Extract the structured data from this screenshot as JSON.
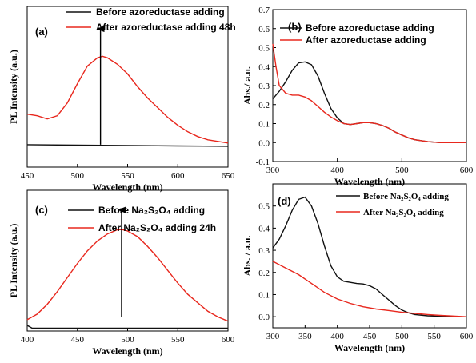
{
  "colors": {
    "black": "#111111",
    "red": "#e8281e"
  },
  "chart_data": [
    {
      "id": "a",
      "type": "line",
      "panel_label": "(a)",
      "xlabel": "Wavelength (nm)",
      "ylabel": "PL Intensity (a.u.)",
      "xlim": [
        450,
        650
      ],
      "ylim": [
        0,
        1
      ],
      "xticks": [
        "450",
        "500",
        "550",
        "600",
        "650"
      ],
      "yticks": [],
      "legend_position": "top-left",
      "arrow": {
        "x": 523,
        "y_from": 0.14,
        "y_to": 0.86
      },
      "series": [
        {
          "name": "Before azoreductase adding",
          "color": "black",
          "x": [
            450,
            500,
            550,
            600,
            650
          ],
          "y": [
            0.14,
            0.137,
            0.135,
            0.132,
            0.13
          ]
        },
        {
          "name": "After azoreductase adding 48h",
          "color": "red",
          "x": [
            450,
            460,
            470,
            480,
            490,
            500,
            510,
            520,
            525,
            530,
            540,
            550,
            560,
            570,
            580,
            590,
            600,
            610,
            620,
            630,
            640,
            650
          ],
          "y": [
            0.33,
            0.32,
            0.3,
            0.32,
            0.4,
            0.52,
            0.63,
            0.68,
            0.69,
            0.68,
            0.64,
            0.58,
            0.5,
            0.43,
            0.37,
            0.31,
            0.26,
            0.22,
            0.19,
            0.17,
            0.16,
            0.15
          ]
        }
      ]
    },
    {
      "id": "b",
      "type": "line",
      "panel_label": "(b)",
      "xlabel": "Wavelength (nm)",
      "ylabel": "Abs./ a.u.",
      "xlim": [
        300,
        600
      ],
      "ylim": [
        -0.1,
        0.7
      ],
      "xticks": [
        "300",
        "400",
        "500",
        "600"
      ],
      "yticks": [
        "-0.1",
        "0.0",
        "0.1",
        "0.2",
        "0.3",
        "0.4",
        "0.5",
        "0.6",
        "0.7"
      ],
      "legend_position": "top-right",
      "series": [
        {
          "name": "Before azoreductase adding",
          "color": "black",
          "x": [
            300,
            310,
            320,
            330,
            340,
            350,
            360,
            370,
            380,
            390,
            400,
            410,
            420,
            430,
            440,
            450,
            460,
            470,
            480,
            490,
            500,
            510,
            520,
            540,
            560,
            580,
            600
          ],
          "y": [
            0.23,
            0.27,
            0.32,
            0.38,
            0.42,
            0.425,
            0.41,
            0.35,
            0.26,
            0.18,
            0.13,
            0.1,
            0.095,
            0.1,
            0.105,
            0.105,
            0.1,
            0.09,
            0.075,
            0.055,
            0.04,
            0.025,
            0.015,
            0.005,
            0.0,
            0.0,
            0.0
          ]
        },
        {
          "name": "After azoreductase adding",
          "color": "red",
          "x": [
            300,
            305,
            310,
            320,
            330,
            340,
            350,
            360,
            370,
            380,
            390,
            400,
            410,
            420,
            430,
            440,
            450,
            460,
            470,
            480,
            490,
            500,
            510,
            520,
            540,
            560,
            580,
            600
          ],
          "y": [
            0.52,
            0.4,
            0.3,
            0.26,
            0.25,
            0.25,
            0.24,
            0.22,
            0.19,
            0.16,
            0.135,
            0.115,
            0.1,
            0.095,
            0.1,
            0.105,
            0.105,
            0.1,
            0.09,
            0.075,
            0.055,
            0.04,
            0.025,
            0.015,
            0.005,
            0.0,
            0.0,
            0.0
          ]
        }
      ]
    },
    {
      "id": "c",
      "type": "line",
      "panel_label": "(c)",
      "xlabel": "Wavelength (nm)",
      "ylabel": "PL Intensity (a.u.)",
      "xlim": [
        400,
        600
      ],
      "ylim": [
        0,
        1
      ],
      "xticks": [
        "400",
        "450",
        "500",
        "550",
        "600"
      ],
      "yticks": [],
      "legend_position": "top-right",
      "arrow": {
        "x": 494,
        "y_from": 0.1,
        "y_to": 0.86
      },
      "series": [
        {
          "name": "Before Na₂S₂O₄ adding",
          "color": "black",
          "x": [
            400,
            405,
            450,
            500,
            550,
            600
          ],
          "y": [
            0.04,
            0.02,
            0.02,
            0.02,
            0.02,
            0.02
          ]
        },
        {
          "name": "After Na₂S₂O₄ adding 24h",
          "color": "red",
          "x": [
            400,
            410,
            420,
            430,
            440,
            450,
            460,
            470,
            480,
            490,
            495,
            500,
            510,
            520,
            530,
            540,
            550,
            560,
            570,
            580,
            590,
            600
          ],
          "y": [
            0.08,
            0.12,
            0.19,
            0.28,
            0.38,
            0.48,
            0.57,
            0.64,
            0.69,
            0.72,
            0.72,
            0.71,
            0.67,
            0.6,
            0.52,
            0.43,
            0.34,
            0.26,
            0.2,
            0.14,
            0.1,
            0.07
          ]
        }
      ]
    },
    {
      "id": "d",
      "type": "line",
      "panel_label": "(d)",
      "xlabel": "Wavelength (nm)",
      "ylabel": "Abs. / a.u.",
      "xlim": [
        300,
        600
      ],
      "ylim": [
        -0.05,
        0.6
      ],
      "xticks": [
        "300",
        "350",
        "400",
        "450",
        "500",
        "550",
        "600"
      ],
      "yticks": [
        "0.0",
        "0.1",
        "0.2",
        "0.3",
        "0.4",
        "0.5"
      ],
      "legend_position": "top-right",
      "series": [
        {
          "name": "Before Na₂S₂O₄ adding",
          "color": "black",
          "x": [
            300,
            310,
            320,
            330,
            340,
            350,
            360,
            370,
            380,
            390,
            400,
            410,
            420,
            430,
            440,
            450,
            460,
            470,
            480,
            490,
            500,
            510,
            520,
            540,
            560,
            580,
            600
          ],
          "y": [
            0.31,
            0.35,
            0.41,
            0.48,
            0.53,
            0.54,
            0.5,
            0.42,
            0.32,
            0.23,
            0.18,
            0.16,
            0.155,
            0.15,
            0.148,
            0.14,
            0.125,
            0.1,
            0.075,
            0.05,
            0.03,
            0.018,
            0.01,
            0.004,
            0.002,
            0.0,
            0.0
          ]
        },
        {
          "name": "After Na₂S₂O₄ adding",
          "color": "red",
          "x": [
            300,
            320,
            340,
            360,
            380,
            400,
            420,
            440,
            460,
            480,
            500,
            520,
            540,
            560,
            580,
            600
          ],
          "y": [
            0.25,
            0.22,
            0.19,
            0.15,
            0.11,
            0.08,
            0.06,
            0.045,
            0.035,
            0.028,
            0.02,
            0.015,
            0.01,
            0.006,
            0.003,
            0.0
          ]
        }
      ]
    }
  ]
}
